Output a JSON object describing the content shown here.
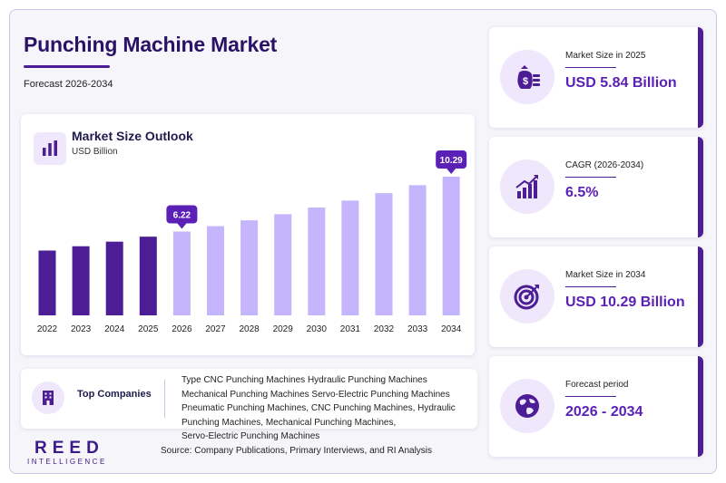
{
  "header": {
    "title": "Punching Machine Market",
    "subtitle": "Forecast 2026-2034"
  },
  "chart_panel": {
    "title": "Market Size Outlook",
    "unit": "USD Billion",
    "icon": "bar-chart-icon"
  },
  "chart_data": {
    "type": "bar",
    "title": "Market Size Outlook",
    "ylabel": "USD Billion",
    "categories": [
      "2022",
      "2023",
      "2024",
      "2025",
      "2026",
      "2027",
      "2028",
      "2029",
      "2030",
      "2031",
      "2032",
      "2033",
      "2034"
    ],
    "values": [
      4.81,
      5.13,
      5.47,
      5.84,
      6.22,
      6.62,
      7.05,
      7.51,
      8.0,
      8.52,
      9.07,
      9.66,
      10.29
    ],
    "highlighted": {
      "2026": "6.22",
      "2034": "10.29"
    },
    "ylim": [
      0,
      10.29
    ],
    "historical_color": "#4c1d95",
    "forecast_color": "#c4b5fd",
    "callout_color": "#5b21b6",
    "grid": false
  },
  "companies": {
    "label": "Top Companies",
    "icon": "building-icon",
    "lines": [
      "Type CNC Punching Machines Hydraulic Punching Machines",
      "Mechanical Punching Machines Servo-Electric Punching Machines",
      "Pneumatic Punching Machines, CNC Punching Machines, Hydraulic",
      "Punching Machines, Mechanical Punching Machines,",
      "Servo-Electric Punching Machines"
    ]
  },
  "source": "Source: Company Publications, Primary Interviews, and RI Analysis",
  "logo": {
    "main": "REED",
    "sub": "INTELLIGENCE"
  },
  "kpis": [
    {
      "label": "Market Size in 2025",
      "value": "USD 5.84 Billion",
      "icon": "money-bag-icon"
    },
    {
      "label": "CAGR (2026-2034)",
      "value": "6.5%",
      "icon": "growth-chart-icon"
    },
    {
      "label": "Market Size in 2034",
      "value": "USD 10.29 Billion",
      "icon": "target-icon"
    },
    {
      "label": "Forecast period",
      "value": "2026 - 2034",
      "icon": "globe-icon"
    }
  ],
  "colors": {
    "brand": "#4c1d95",
    "accent": "#5b21b6",
    "icon_bg": "#efe7fb"
  }
}
